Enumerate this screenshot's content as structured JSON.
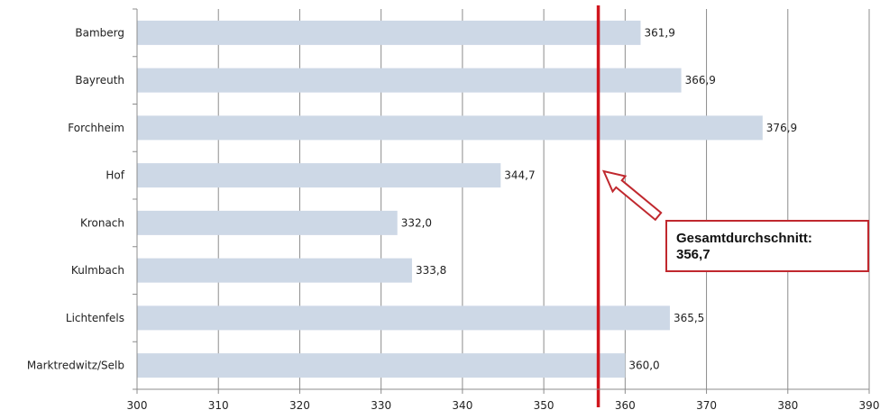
{
  "chart_data": {
    "type": "bar",
    "orientation": "horizontal",
    "categories": [
      "Bamberg",
      "Bayreuth",
      "Forchheim",
      "Hof",
      "Kronach",
      "Kulmbach",
      "Lichtenfels",
      "Marktredwitz/Selb"
    ],
    "values": [
      361.9,
      366.9,
      376.9,
      344.7,
      332.0,
      333.8,
      365.5,
      360.0
    ],
    "value_labels": [
      "361,9",
      "366,9",
      "376,9",
      "344,7",
      "332,0",
      "333,8",
      "365,5",
      "360,0"
    ],
    "xlim": [
      300,
      390
    ],
    "x_ticks": [
      300,
      310,
      320,
      330,
      340,
      350,
      360,
      370,
      380,
      390
    ],
    "grid": "vertical",
    "bar_color": "#cdd8e6",
    "reference_line": {
      "value": 356.7,
      "color": "#d0161e"
    },
    "annotation": {
      "line1": "Gesamtdurchschnitt:",
      "line2": "356,7",
      "border_color": "#c0282e"
    }
  }
}
